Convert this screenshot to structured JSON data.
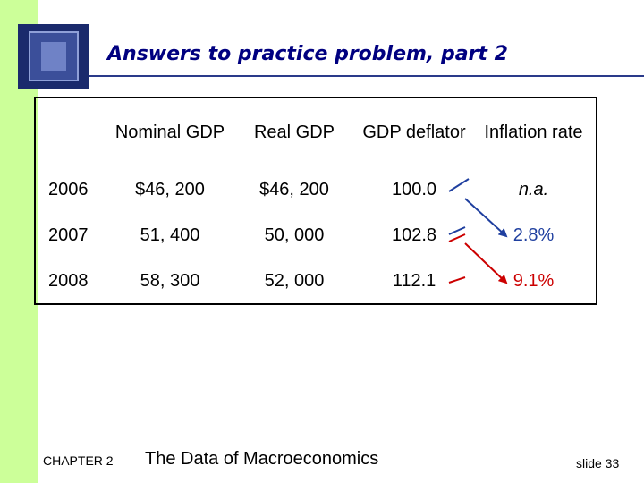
{
  "title": "Answers to practice problem, part 2",
  "table": {
    "headers": [
      "",
      "Nominal GDP",
      "Real GDP",
      "GDP deflator",
      "Inflation rate"
    ],
    "rows": [
      {
        "year": "2006",
        "nominal": "$46, 200",
        "real": "$46, 200",
        "deflator": "100.0",
        "inflation": "n.a."
      },
      {
        "year": "2007",
        "nominal": "51, 400",
        "real": "50, 000",
        "deflator": "102.8",
        "inflation": "2.8%"
      },
      {
        "year": "2008",
        "nominal": "58, 300",
        "real": "52, 000",
        "deflator": "112.1",
        "inflation": "9.1%"
      }
    ]
  },
  "colors": {
    "sidebar": "#ccff99",
    "title": "#000080",
    "blue_arrow": "#1f3f9f",
    "red_arrow": "#cc0000"
  },
  "footer": {
    "chapter": "CHAPTER 2",
    "title": "The Data of Macroeconomics",
    "slide": "slide 33"
  }
}
